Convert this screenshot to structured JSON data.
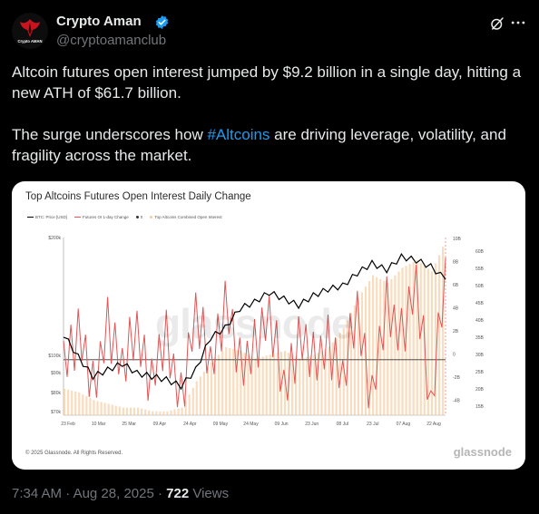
{
  "author": {
    "name": "Crypto Aman",
    "handle": "@cryptoamanclub",
    "avatar_text": "Crypto AMAN",
    "verified": true
  },
  "tweet": {
    "paragraph_1": "Altcoin futures open interest jumped by $9.2 billion in a single day, hitting a new ATH of $61.7 billion.",
    "paragraph_2_before": "The surge underscores how ",
    "hashtag": "#Altcoins",
    "paragraph_2_after": " are driving leverage, volatility, and fragility across the market."
  },
  "meta": {
    "time": "7:34 AM",
    "separator_1": " · ",
    "date": "Aug 28, 2025",
    "separator_2": " · ",
    "views_count": "722",
    "views_label": " Views"
  },
  "media": {
    "copyright": "© 2025 Glassnode. All Rights Reserved.",
    "brand": "glassnode",
    "watermark": "glassnode"
  },
  "icons": {
    "verified": "verified-badge-icon",
    "grok": "grok-icon",
    "more": "more-options-icon"
  },
  "colors": {
    "link": "#1d9bf0",
    "muted": "#71767b",
    "text": "#e7e9ea",
    "btc_line": "#000000",
    "futures_change": "#e05555",
    "combined_oi": "#f6c99a"
  },
  "chart_data": {
    "type": "line",
    "title": "Top Altcoins Futures Open Interest Daily Change",
    "legend": [
      "BTC: Price [USD]",
      "Futures OI 1-day Change",
      "0",
      "Top Altcoins Combined Open Interest"
    ],
    "x_ticks": [
      "23 Feb",
      "10 Mar",
      "25 Mar",
      "09 Apr",
      "24 Apr",
      "09 May",
      "24 May",
      "09 Jun",
      "23 Jun",
      "08 Jul",
      "23 Jul",
      "07 Aug",
      "22 Aug"
    ],
    "y_left_ticks": [
      "$200k",
      "$100k",
      "$90k",
      "$80k",
      "$70k"
    ],
    "y_right1_ticks": [
      "10B",
      "8B",
      "6B",
      "4B",
      "2B",
      "0",
      "-2B",
      "-4B"
    ],
    "y_right2_ticks": [
      "60B",
      "55B",
      "50B",
      "45B",
      "40B",
      "35B",
      "30B",
      "25B",
      "20B",
      "15B"
    ],
    "series": [
      {
        "name": "BTC: Price [USD]",
        "axis": "left",
        "values": [
          95000,
          88000,
          82000,
          84000,
          86000,
          83000,
          82000,
          81000,
          79000,
          84000,
          94000,
          97000,
          103000,
          105000,
          108000,
          106000,
          104000,
          107000,
          109000,
          110000,
          114000,
          117000,
          115000,
          119000,
          118000,
          116000,
          112000
        ]
      },
      {
        "name": "Futures OI 1-day Change",
        "axis": "right1",
        "values": [
          0.5,
          2.5,
          -3.1,
          4.0,
          -1.5,
          3.2,
          -2.0,
          1.5,
          -2.8,
          3.5,
          0.0,
          5.0,
          -1.0,
          2.0,
          3.2,
          -2.1,
          1.8,
          -0.5,
          2.4,
          -2.6,
          5.0,
          -3.5,
          4.5,
          3.0,
          6.0,
          -4.0,
          9.2
        ]
      },
      {
        "name": "Top Altcoins Combined Open Interest",
        "axis": "right2",
        "values": [
          22,
          21,
          19,
          18,
          17,
          17,
          16,
          16,
          17,
          24,
          29,
          33,
          32,
          30,
          31,
          32,
          30,
          31,
          33,
          38,
          46,
          52,
          50,
          54,
          56,
          53,
          61.7
        ]
      }
    ]
  }
}
